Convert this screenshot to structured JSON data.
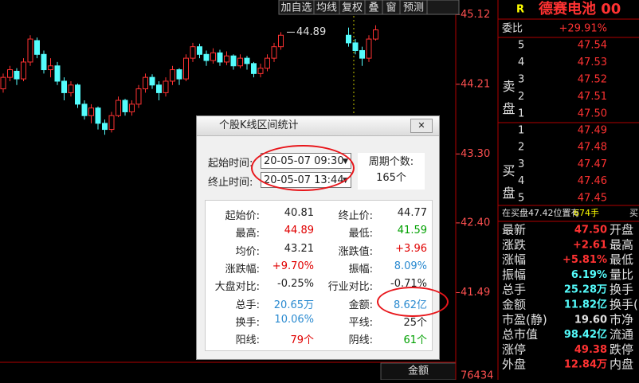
{
  "toolbar": {
    "buttons": [
      "加自选",
      "均线",
      "复权",
      "叠",
      "窗",
      "预测"
    ]
  },
  "chart": {
    "type": "candlestick",
    "ylim": [
      40.58,
      45.31
    ],
    "yticks": [
      45.12,
      44.21,
      {
        "value": 43.3,
        "label": "43.30"
      },
      {
        "value": 42.4,
        "label": "42.40"
      },
      41.49
    ],
    "up_color": "#ff3232",
    "down_color": "#54fcfc",
    "max_label": 44.89,
    "bottom_label": "金额",
    "bottom_value": "76434",
    "candles": [
      [
        44.15,
        44.3,
        44.35,
        44.1
      ],
      [
        44.3,
        44.4,
        44.45,
        44.25
      ],
      [
        44.38,
        44.28,
        44.42,
        44.2
      ],
      [
        44.28,
        44.5,
        44.55,
        44.25
      ],
      [
        44.5,
        44.8,
        44.85,
        44.45
      ],
      [
        44.78,
        44.6,
        44.82,
        44.55
      ],
      [
        44.6,
        44.4,
        44.65,
        44.35
      ],
      [
        44.4,
        44.45,
        44.55,
        44.3
      ],
      [
        44.45,
        44.25,
        44.5,
        44.2
      ],
      [
        44.25,
        44.1,
        44.3,
        44.0
      ],
      [
        44.1,
        44.2,
        44.25,
        44.05
      ],
      [
        44.2,
        43.95,
        44.22,
        43.9
      ],
      [
        43.95,
        43.8,
        44.0,
        43.75
      ],
      [
        43.8,
        43.9,
        43.95,
        43.7
      ],
      [
        43.9,
        43.7,
        43.92,
        43.62
      ],
      [
        43.7,
        43.62,
        43.75,
        43.55
      ],
      [
        43.62,
        43.8,
        43.85,
        43.58
      ],
      [
        43.8,
        44.0,
        44.05,
        43.78
      ],
      [
        44.0,
        43.85,
        44.02,
        43.8
      ],
      [
        43.85,
        43.95,
        44.0,
        43.8
      ],
      [
        43.95,
        44.15,
        44.2,
        43.9
      ],
      [
        44.15,
        44.3,
        44.35,
        44.1
      ],
      [
        44.3,
        44.2,
        44.34,
        44.15
      ],
      [
        44.2,
        44.1,
        44.25,
        44.0
      ],
      [
        44.1,
        44.25,
        44.3,
        44.05
      ],
      [
        44.25,
        44.4,
        44.45,
        44.2
      ],
      [
        44.4,
        44.28,
        44.42,
        44.2
      ],
      [
        44.28,
        44.55,
        44.6,
        44.25
      ],
      [
        44.55,
        44.7,
        44.75,
        44.5
      ],
      [
        44.7,
        44.6,
        44.74,
        44.55
      ],
      [
        44.6,
        44.52,
        44.65,
        44.45
      ],
      [
        44.52,
        44.62,
        44.68,
        44.48
      ],
      [
        44.62,
        44.5,
        44.66,
        44.45
      ],
      [
        44.5,
        44.58,
        44.64,
        44.46
      ],
      [
        44.58,
        44.45,
        44.6,
        44.4
      ],
      [
        44.45,
        44.55,
        44.6,
        44.42
      ],
      [
        44.55,
        44.48,
        44.58,
        44.4
      ],
      [
        44.48,
        44.35,
        44.5,
        44.3
      ],
      [
        44.35,
        44.42,
        44.48,
        44.3
      ],
      [
        44.42,
        44.55,
        44.6,
        44.38
      ],
      [
        44.55,
        44.7,
        44.75,
        44.5
      ],
      [
        44.7,
        44.85,
        44.89,
        44.66
      ],
      null,
      null,
      null,
      null,
      null,
      null,
      null,
      null,
      null,
      [
        44.85,
        44.75,
        44.95,
        44.7
      ],
      [
        44.75,
        44.65,
        44.8,
        44.6
      ],
      [
        44.65,
        44.55,
        44.7,
        44.45
      ],
      [
        44.55,
        44.8,
        44.85,
        44.5
      ],
      [
        44.8,
        44.92,
        44.98,
        44.78
      ]
    ]
  },
  "quote": {
    "flag": "R",
    "name": "德赛电池 00",
    "ratio_label": "委比",
    "ratio": "+29.91%",
    "sell_side": "卖盘",
    "buy_side": "买盘",
    "sell": [
      {
        "level": "5",
        "price": "47.54"
      },
      {
        "level": "4",
        "price": "47.53"
      },
      {
        "level": "3",
        "price": "47.52"
      },
      {
        "level": "2",
        "price": "47.51"
      },
      {
        "level": "1",
        "price": "47.50"
      }
    ],
    "buy": [
      {
        "level": "1",
        "price": "47.49"
      },
      {
        "level": "2",
        "price": "47.48"
      },
      {
        "level": "3",
        "price": "47.47"
      },
      {
        "level": "4",
        "price": "47.46"
      },
      {
        "level": "5",
        "price": "47.45"
      }
    ],
    "notice": {
      "text": "在买盘47.42位置有",
      "volume": "674手",
      "tail": "买"
    },
    "stats": [
      {
        "label": "最新",
        "value": "47.50",
        "color": "#ff3232",
        "next": "开盘"
      },
      {
        "label": "涨跌",
        "value": "+2.61",
        "color": "#ff3232",
        "next": "最高"
      },
      {
        "label": "涨幅",
        "value": "+5.81%",
        "color": "#ff3232",
        "next": "最低"
      },
      {
        "label": "振幅",
        "value": "6.19%",
        "color": "#54fcfc",
        "next": "量比"
      },
      {
        "label": "总手",
        "value": "25.28万",
        "color": "#54fcfc",
        "next": "换手"
      },
      {
        "label": "金额",
        "value": "11.82亿",
        "color": "#54fcfc",
        "next": "换手("
      },
      {
        "label": "市盈(静)",
        "value": "19.60",
        "color": "#e0e0e0",
        "next": "市净"
      },
      {
        "label": "总市值",
        "value": "98.42亿",
        "color": "#54fcfc",
        "next": "流通"
      },
      {
        "label": "涨停",
        "value": "49.38",
        "color": "#ff3232",
        "next": "跌停"
      },
      {
        "label": "外盘",
        "value": "12.84万",
        "color": "#ff3232",
        "next": "内盘"
      }
    ]
  },
  "dialog": {
    "title": "个股K线区间统计",
    "start_label": "起始时间:",
    "start_value": "20-05-07 09:30",
    "end_label": "终止时间:",
    "end_value": "20-05-07 13:44",
    "count_label": "周期个数:",
    "count_value": "165个",
    "rows": [
      [
        {
          "label": "起始价:",
          "value": "40.81",
          "color": "#222"
        },
        {
          "label": "终止价:",
          "value": "44.77",
          "color": "#222"
        }
      ],
      [
        {
          "label": "最高:",
          "value": "44.89",
          "color": "#e00000"
        },
        {
          "label": "最低:",
          "value": "41.59",
          "color": "#00a000"
        }
      ],
      [
        {
          "label": "均价:",
          "value": "43.21",
          "color": "#222"
        },
        {
          "label": "涨跌值:",
          "value": "+3.96",
          "color": "#e00000"
        }
      ],
      [
        {
          "label": "涨跌幅:",
          "value": "+9.70%",
          "color": "#e00000"
        },
        {
          "label": "振幅:",
          "value": "8.09%",
          "color": "#2a8ad0"
        }
      ],
      [
        {
          "label": "大盘对比:",
          "value": "-0.25%",
          "color": "#222"
        },
        {
          "label": "行业对比:",
          "value": "-0.71%",
          "color": "#222"
        }
      ],
      [
        {
          "label": "总手:",
          "value": "20.65万",
          "color": "#2a8ad0"
        },
        {
          "label": "金额:",
          "value": "8.62亿",
          "color": "#2a8ad0"
        }
      ],
      [
        {
          "label": "换手:",
          "value": "10.06%",
          "color": "#2a8ad0"
        },
        {
          "label": "平线:",
          "value": "25个",
          "color": "#222"
        }
      ],
      [
        {
          "label": "阳线:",
          "value": "79个",
          "color": "#e00000"
        },
        {
          "label": "阴线:",
          "value": "61个",
          "color": "#00a000"
        }
      ]
    ]
  }
}
